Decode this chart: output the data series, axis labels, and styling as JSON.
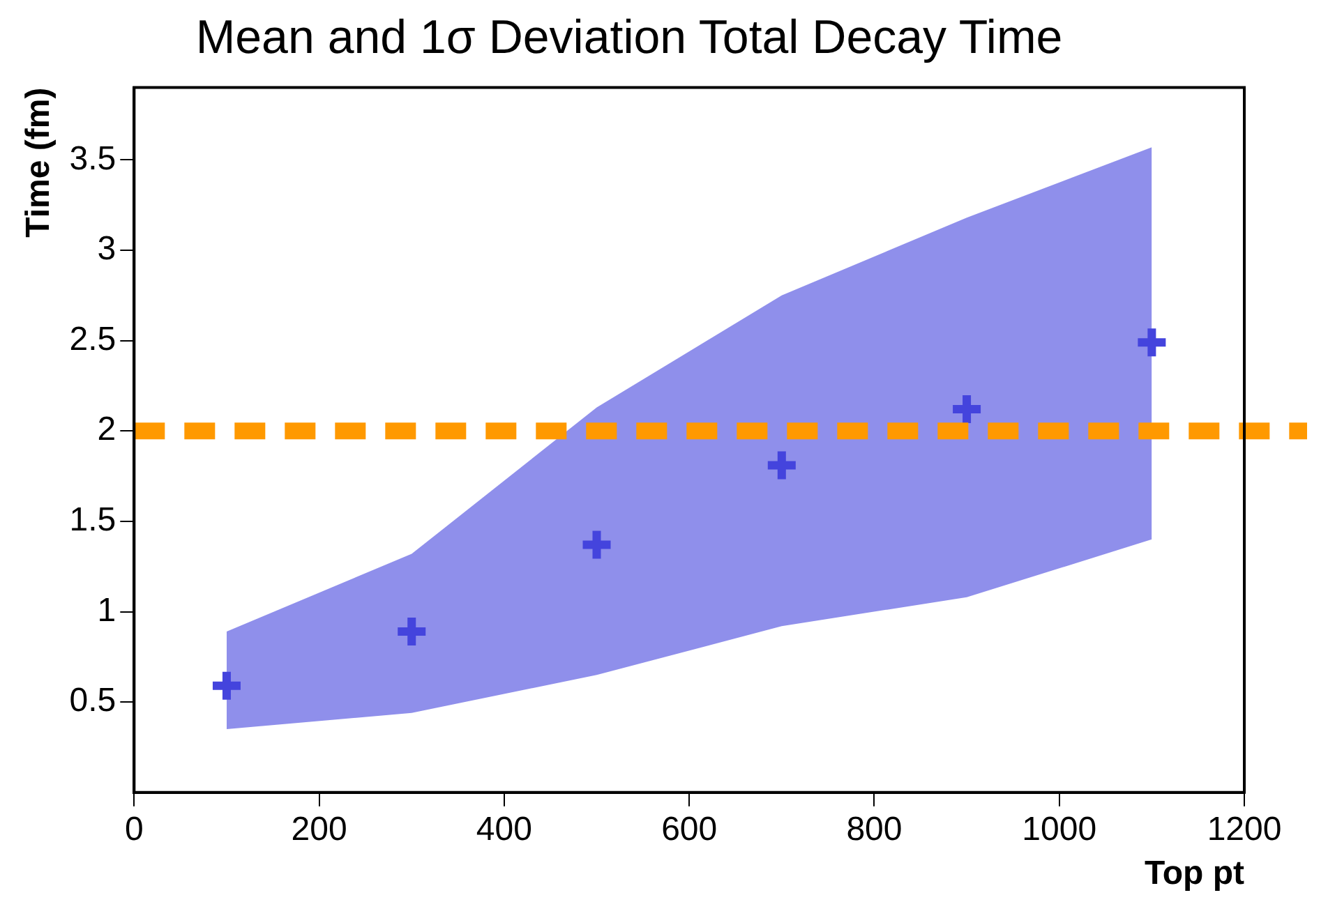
{
  "chart_data": {
    "type": "scatter",
    "title": "Mean and 1σ Deviation Total Decay Time",
    "xlabel": "Top pt",
    "ylabel": "Time (fm)",
    "x": [
      100,
      300,
      500,
      700,
      900,
      1100
    ],
    "series": [
      {
        "type": "scatter",
        "color": "#4444dd",
        "values": [
          0.59,
          0.89,
          1.37,
          1.81,
          2.12,
          2.49
        ],
        "lower": [
          0.35,
          0.44,
          0.65,
          0.92,
          1.08,
          1.4
        ],
        "upper": [
          0.89,
          1.32,
          2.13,
          2.75,
          3.18,
          3.57
        ]
      }
    ],
    "xlim": [
      0,
      1200
    ],
    "xticks": [
      0,
      200,
      400,
      600,
      800,
      1000,
      1200
    ],
    "ylim": [
      0,
      3.9
    ],
    "yticks": [
      0.5,
      1,
      1.5,
      2,
      2.5,
      3,
      3.5
    ],
    "ref_lines": [
      {
        "axis": "y",
        "value": 2,
        "color": "#ff9900",
        "line_style": "dashed"
      }
    ],
    "marker": "cross",
    "grid": false,
    "legend": false
  }
}
